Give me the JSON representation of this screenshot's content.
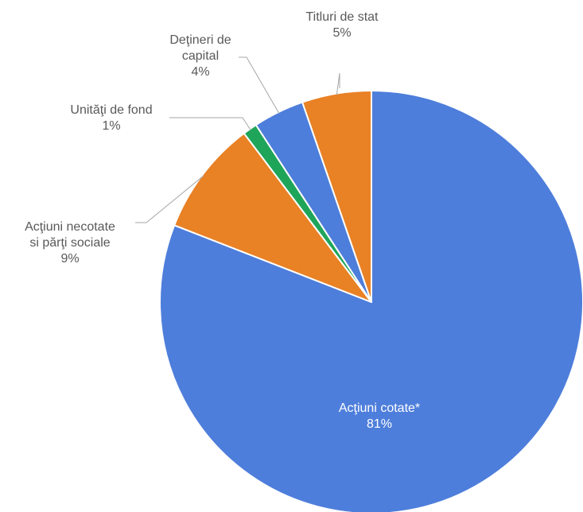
{
  "chart_data": {
    "type": "pie",
    "start": "12 o'clock, clockwise",
    "slices": [
      {
        "label": [
          "Acţiuni cotate*"
        ],
        "pct_label": "81%",
        "value": 81.0,
        "color": "#4E7EDB"
      },
      {
        "label": [
          "Acţiuni necotate",
          "si părţi sociale"
        ],
        "pct_label": "9%",
        "value": 8.8,
        "color": "#E98125"
      },
      {
        "label": [
          "Unităţi de fond"
        ],
        "pct_label": "1%",
        "value": 1.1,
        "color": "#1FA55A"
      },
      {
        "label": [
          "Deţineri de",
          "capital"
        ],
        "pct_label": "4%",
        "value": 3.9,
        "color": "#4E7EDB"
      },
      {
        "label": [
          "Titluri de stat"
        ],
        "pct_label": "5%",
        "value": 5.3,
        "color": "#E98125"
      }
    ]
  }
}
